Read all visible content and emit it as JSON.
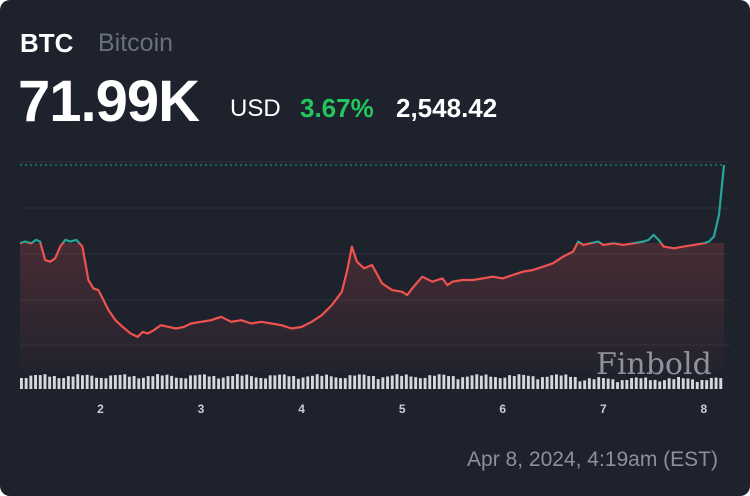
{
  "header": {
    "ticker": "BTC",
    "name": "Bitcoin",
    "price": "71.99K",
    "currency": "USD",
    "change_pct": "3.67%",
    "change_abs": "2,548.42"
  },
  "timestamp": "Apr 8, 2024, 4:19am (EST)",
  "watermark": "Finbold",
  "colors": {
    "background": "#1e222d",
    "up": "#26a69a",
    "down": "#ef5350",
    "positive_text": "#22c55e",
    "volume": "#d6d8dd"
  },
  "chart_data": {
    "type": "line",
    "title": "BTC Bitcoin",
    "baseline_value": 71990,
    "x_tick_labels": [
      "2",
      "3",
      "4",
      "5",
      "6",
      "7",
      "8"
    ],
    "x_ticks": [
      2,
      3,
      4,
      5,
      6,
      7,
      8
    ],
    "xlim": [
      1.2,
      8.2
    ],
    "ylim": [
      65800,
      72200
    ],
    "grid": true,
    "y_axis_labels_shown": false,
    "series": [
      {
        "x": [
          1.2,
          1.25,
          1.31,
          1.36,
          1.4,
          1.45,
          1.5,
          1.55,
          1.6,
          1.65,
          1.7,
          1.76,
          1.82,
          1.88,
          1.93,
          1.98,
          2.03,
          2.08,
          2.15,
          2.22,
          2.3,
          2.37,
          2.42,
          2.47,
          2.53,
          2.6,
          2.68,
          2.75,
          2.83,
          2.9,
          3.0,
          3.1,
          3.2,
          3.3,
          3.4,
          3.5,
          3.6,
          3.7,
          3.8,
          3.9,
          4.0,
          4.1,
          4.2,
          4.3,
          4.4,
          4.45,
          4.5,
          4.55,
          4.62,
          4.7,
          4.8,
          4.9,
          5.0,
          5.05,
          5.1,
          5.2,
          5.3,
          5.35,
          5.4,
          5.45,
          5.5,
          5.6,
          5.7,
          5.8,
          5.9,
          6.0,
          6.1,
          6.2,
          6.3,
          6.4,
          6.5,
          6.6,
          6.7,
          6.75,
          6.8,
          6.87,
          6.95,
          7.0,
          7.1,
          7.2,
          7.3,
          7.4,
          7.45,
          7.5,
          7.55,
          7.6,
          7.7,
          7.8,
          7.9,
          8.0,
          8.05,
          8.1,
          8.15,
          8.2
        ],
        "y": [
          69650,
          69700,
          69650,
          69750,
          69700,
          69150,
          69100,
          69200,
          69550,
          69750,
          69700,
          69750,
          69550,
          68550,
          68300,
          68250,
          67950,
          67650,
          67350,
          67150,
          66950,
          66850,
          67000,
          66950,
          67050,
          67200,
          67150,
          67100,
          67150,
          67250,
          67300,
          67350,
          67450,
          67300,
          67350,
          67250,
          67300,
          67250,
          67200,
          67100,
          67150,
          67300,
          67500,
          67800,
          68200,
          68800,
          69550,
          69100,
          68900,
          69000,
          68450,
          68250,
          68200,
          68100,
          68300,
          68650,
          68500,
          68550,
          68600,
          68400,
          68500,
          68550,
          68550,
          68600,
          68650,
          68600,
          68700,
          68800,
          68850,
          68950,
          69050,
          69250,
          69400,
          69700,
          69600,
          69650,
          69700,
          69600,
          69650,
          69600,
          69650,
          69700,
          69750,
          69900,
          69750,
          69550,
          69500,
          69550,
          69600,
          69650,
          69700,
          69850,
          70500,
          71990
        ]
      }
    ],
    "volume_shown": true
  }
}
